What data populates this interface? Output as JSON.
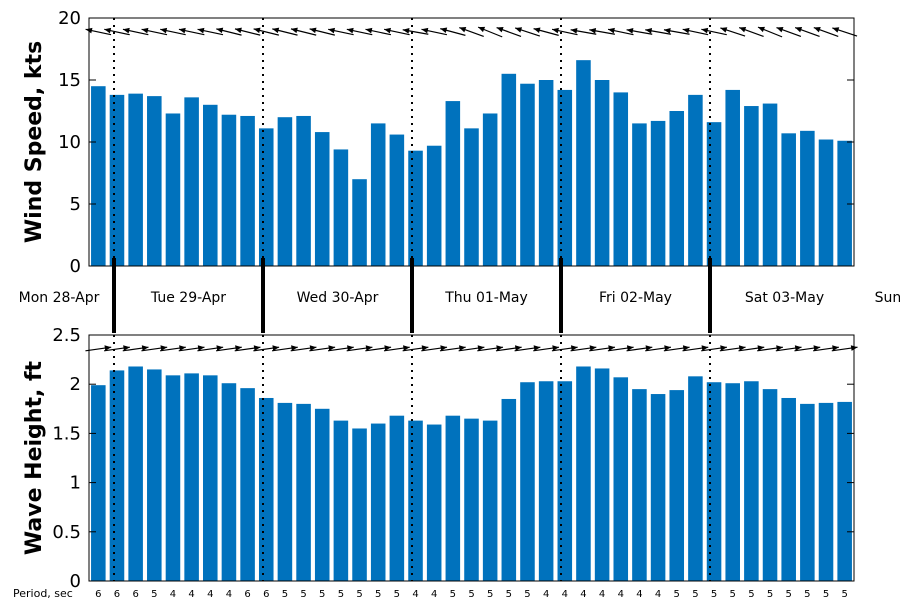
{
  "chart_data": [
    {
      "type": "bar",
      "ylabel": "Wind Speed, kts",
      "ylim": [
        0,
        20
      ],
      "yticks": [
        "0",
        "5",
        "10",
        "15",
        "20"
      ],
      "bar_color": "#0072bd",
      "values": [
        14.5,
        13.8,
        13.9,
        13.7,
        12.3,
        13.6,
        13.0,
        12.2,
        12.1,
        11.1,
        12.0,
        12.1,
        10.8,
        9.4,
        7.0,
        11.5,
        10.6,
        9.3,
        9.7,
        13.3,
        11.1,
        12.3,
        15.5,
        14.7,
        15.0,
        14.2,
        16.6,
        15.0,
        14.0,
        11.5,
        11.7,
        12.5,
        13.8,
        11.6,
        14.2,
        12.9,
        13.1,
        10.7,
        10.9,
        10.2,
        10.1
      ],
      "arrow_direction_deg": [
        168,
        168,
        168,
        168,
        168,
        168,
        168,
        166,
        166,
        166,
        166,
        166,
        166,
        168,
        168,
        168,
        168,
        170,
        168,
        165,
        160,
        158,
        160,
        162,
        165,
        168,
        170,
        170,
        168,
        170,
        170,
        170,
        168,
        168,
        162,
        160,
        158,
        160,
        160,
        160,
        162
      ]
    },
    {
      "type": "bar",
      "ylabel": "Wave Height, ft",
      "ylim": [
        0,
        2.5
      ],
      "yticks": [
        "0",
        "0.5",
        "1",
        "1.5",
        "2",
        "2.5"
      ],
      "bar_color": "#0072bd",
      "values": [
        1.99,
        2.14,
        2.18,
        2.15,
        2.09,
        2.11,
        2.09,
        2.01,
        1.96,
        1.86,
        1.81,
        1.8,
        1.75,
        1.63,
        1.55,
        1.6,
        1.68,
        1.63,
        1.59,
        1.68,
        1.65,
        1.63,
        1.85,
        2.02,
        2.03,
        2.03,
        2.18,
        2.16,
        2.07,
        1.95,
        1.9,
        1.94,
        2.08,
        2.02,
        2.01,
        2.03,
        1.95,
        1.86,
        1.8,
        1.81,
        1.82
      ],
      "arrow_direction_deg": [
        8,
        8,
        8,
        8,
        8,
        8,
        8,
        8,
        8,
        8,
        8,
        8,
        8,
        8,
        8,
        8,
        8,
        8,
        8,
        8,
        8,
        8,
        8,
        8,
        8,
        8,
        8,
        8,
        8,
        8,
        8,
        8,
        8,
        8,
        8,
        8,
        8,
        8,
        8,
        8,
        8
      ],
      "period_title": "Period, sec",
      "periods": [
        "6",
        "6",
        "6",
        "5",
        "4",
        "4",
        "4",
        "4",
        "6",
        "6",
        "5",
        "5",
        "5",
        "5",
        "5",
        "5",
        "5",
        "4",
        "4",
        "5",
        "5",
        "5",
        "5",
        "5",
        "4",
        "4",
        "4",
        "4",
        "4",
        "4",
        "4",
        "5",
        "5",
        "5",
        "5",
        "5",
        "5",
        "5",
        "5",
        "5",
        "5"
      ]
    }
  ],
  "days": [
    "Mon 28-Apr",
    "Tue 29-Apr",
    "Wed 30-Apr",
    "Thu 01-May",
    "Fri 02-May",
    "Sat 03-May",
    "Sun"
  ]
}
